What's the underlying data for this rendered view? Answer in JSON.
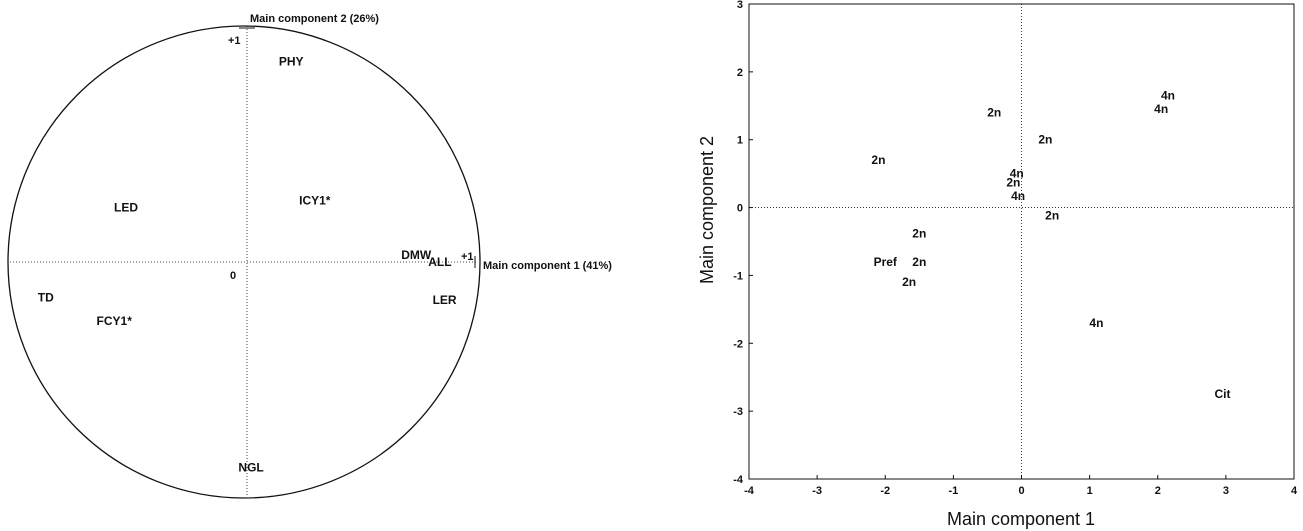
{
  "chart_data": [
    {
      "type": "scatter",
      "title": "",
      "x_axis_label": "Main component 1 (41%)",
      "y_axis_label": "Main component 2 (26%)",
      "unit_circle": true,
      "origin_label": "0",
      "unit_tick_x_label": "+1",
      "unit_tick_y_label": "+1",
      "points": [
        {
          "label": "PHY",
          "x": 0.2,
          "y": 0.85
        },
        {
          "label": "ICY1*",
          "x": 0.3,
          "y": 0.26
        },
        {
          "label": "LED",
          "x": -0.5,
          "y": 0.23
        },
        {
          "label": "DMW",
          "x": 0.73,
          "y": 0.03
        },
        {
          "label": "ALL",
          "x": 0.83,
          "y": 0.0
        },
        {
          "label": "LER",
          "x": 0.85,
          "y": -0.16
        },
        {
          "label": "TD",
          "x": -0.84,
          "y": -0.15
        },
        {
          "label": "FCY1*",
          "x": -0.55,
          "y": -0.25
        },
        {
          "label": "NGL",
          "x": 0.03,
          "y": -0.87
        }
      ]
    },
    {
      "type": "scatter",
      "title": "",
      "xlabel": "Main component 1",
      "ylabel": "Main component 2",
      "xlim": [
        -4,
        4
      ],
      "ylim": [
        -4,
        3
      ],
      "x_ticks": [
        -4,
        -3,
        -2,
        -1,
        0,
        1,
        2,
        3,
        4
      ],
      "y_ticks": [
        -4,
        -3,
        -2,
        -1,
        0,
        1,
        2,
        3
      ],
      "points": [
        {
          "label": "4n",
          "x": 2.15,
          "y": 1.65
        },
        {
          "label": "4n",
          "x": 2.05,
          "y": 1.45
        },
        {
          "label": "2n",
          "x": -0.4,
          "y": 1.4
        },
        {
          "label": "2n",
          "x": 0.35,
          "y": 1.0
        },
        {
          "label": "2n",
          "x": -2.1,
          "y": 0.7
        },
        {
          "label": "4n",
          "x": -0.07,
          "y": 0.5
        },
        {
          "label": "2n",
          "x": -0.12,
          "y": 0.37
        },
        {
          "label": "4n",
          "x": -0.05,
          "y": 0.17
        },
        {
          "label": "2n",
          "x": 0.45,
          "y": -0.12
        },
        {
          "label": "2n",
          "x": -1.5,
          "y": -0.38
        },
        {
          "label": "2n",
          "x": -1.5,
          "y": -0.8
        },
        {
          "label": "Pref",
          "x": -2.0,
          "y": -0.8
        },
        {
          "label": "2n",
          "x": -1.65,
          "y": -1.1
        },
        {
          "label": "4n",
          "x": 1.1,
          "y": -1.7
        },
        {
          "label": "Cit",
          "x": 2.95,
          "y": -2.75
        }
      ]
    }
  ]
}
